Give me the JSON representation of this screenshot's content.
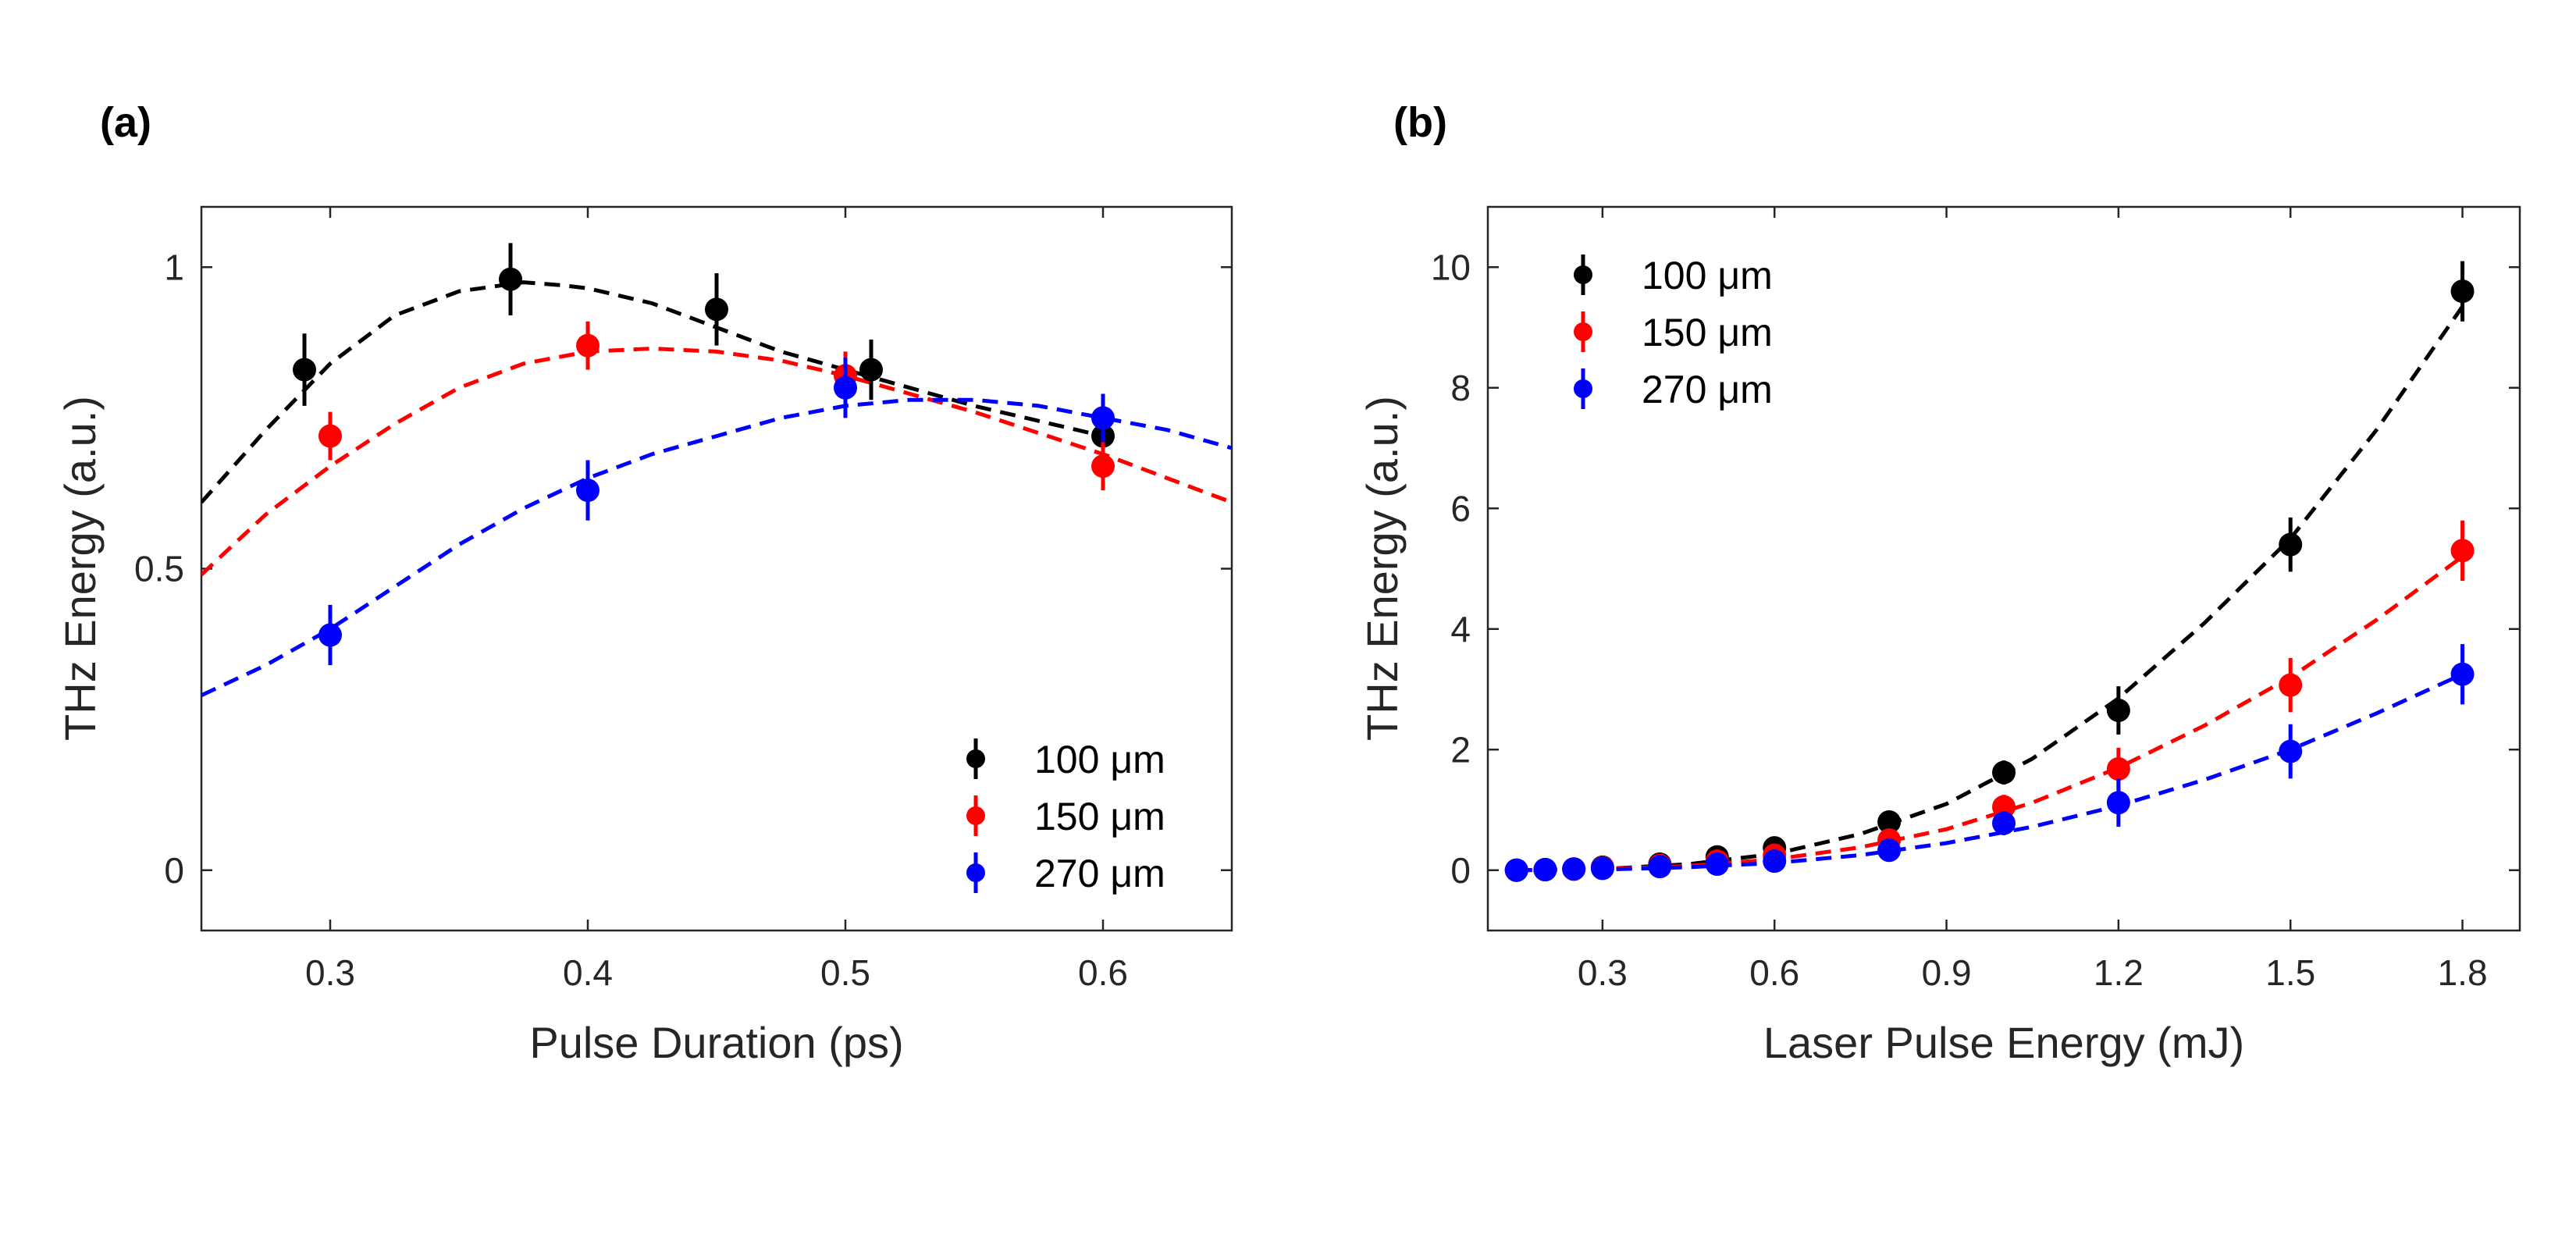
{
  "chart_data": [
    {
      "panel": "(a)",
      "type": "scatter",
      "xlabel": "Pulse Duration (ps)",
      "ylabel": "THz Energy (a.u.)",
      "xlim": [
        0.25,
        0.65
      ],
      "ylim": [
        -0.1,
        1.1
      ],
      "xticks": [
        0.3,
        0.4,
        0.5,
        0.6
      ],
      "xtick_labels": [
        "0.3",
        "0.4",
        "0.5",
        "0.6"
      ],
      "yticks": [
        0,
        0.5,
        1
      ],
      "ytick_labels": [
        "0",
        "0.5",
        "1"
      ],
      "legend_position": "bottom-right",
      "series": [
        {
          "name": "100 μm",
          "color": "#000000",
          "x": [
            0.29,
            0.37,
            0.45,
            0.51,
            0.6
          ],
          "y": [
            0.83,
            0.98,
            0.93,
            0.83,
            0.72
          ],
          "err": [
            0.06,
            0.06,
            0.06,
            0.05,
            0.04
          ],
          "fit_x": [
            0.25,
            0.275,
            0.3,
            0.325,
            0.35,
            0.375,
            0.39,
            0.4,
            0.425,
            0.45,
            0.475,
            0.5,
            0.525,
            0.55,
            0.575,
            0.6
          ],
          "fit_y": [
            0.61,
            0.73,
            0.84,
            0.92,
            0.96,
            0.975,
            0.97,
            0.965,
            0.94,
            0.9,
            0.86,
            0.83,
            0.8,
            0.77,
            0.745,
            0.72
          ]
        },
        {
          "name": "150 μm",
          "color": "#ff0000",
          "x": [
            0.3,
            0.4,
            0.5,
            0.6
          ],
          "y": [
            0.72,
            0.87,
            0.82,
            0.67
          ],
          "err": [
            0.04,
            0.04,
            0.04,
            0.04
          ],
          "fit_x": [
            0.25,
            0.275,
            0.3,
            0.325,
            0.35,
            0.375,
            0.4,
            0.425,
            0.45,
            0.475,
            0.5,
            0.525,
            0.55,
            0.575,
            0.6,
            0.625,
            0.65
          ],
          "fit_y": [
            0.49,
            0.59,
            0.67,
            0.74,
            0.8,
            0.84,
            0.86,
            0.865,
            0.86,
            0.845,
            0.82,
            0.79,
            0.76,
            0.725,
            0.69,
            0.65,
            0.61
          ]
        },
        {
          "name": "270 μm",
          "color": "#0000ff",
          "x": [
            0.3,
            0.4,
            0.5,
            0.6
          ],
          "y": [
            0.39,
            0.63,
            0.8,
            0.75
          ],
          "err": [
            0.05,
            0.05,
            0.05,
            0.04
          ],
          "fit_x": [
            0.25,
            0.275,
            0.3,
            0.325,
            0.35,
            0.375,
            0.4,
            0.425,
            0.45,
            0.475,
            0.5,
            0.525,
            0.55,
            0.575,
            0.6,
            0.625,
            0.65
          ],
          "fit_y": [
            0.29,
            0.34,
            0.4,
            0.47,
            0.54,
            0.6,
            0.65,
            0.69,
            0.72,
            0.75,
            0.77,
            0.78,
            0.78,
            0.77,
            0.75,
            0.73,
            0.7
          ]
        }
      ]
    },
    {
      "panel": "(b)",
      "type": "scatter",
      "xlabel": "Laser Pulse Energy (mJ)",
      "ylabel": "THz Energy (a.u.)",
      "xlim": [
        0.1,
        1.9
      ],
      "ylim": [
        -1,
        11
      ],
      "xticks": [
        0.3,
        0.6,
        0.9,
        1.2,
        1.5,
        1.8
      ],
      "xtick_labels": [
        "0.3",
        "0.6",
        "0.9",
        "1.2",
        "1.5",
        "1.8"
      ],
      "yticks": [
        0,
        2,
        4,
        6,
        8,
        10
      ],
      "ytick_labels": [
        "0",
        "2",
        "4",
        "6",
        "8",
        "10"
      ],
      "legend_position": "top-left",
      "series": [
        {
          "name": "100 μm",
          "color": "#000000",
          "x": [
            0.15,
            0.2,
            0.25,
            0.3,
            0.4,
            0.5,
            0.6,
            0.8,
            1.0,
            1.2,
            1.5,
            1.8
          ],
          "y": [
            0.0,
            0.01,
            0.02,
            0.05,
            0.1,
            0.22,
            0.37,
            0.8,
            1.62,
            2.65,
            5.4,
            9.6
          ],
          "err": [
            0.05,
            0.05,
            0.05,
            0.05,
            0.05,
            0.05,
            0.08,
            0.12,
            0.2,
            0.4,
            0.45,
            0.5
          ],
          "fit_x": [
            0.15,
            0.3,
            0.45,
            0.6,
            0.75,
            0.9,
            1.05,
            1.2,
            1.35,
            1.5,
            1.65,
            1.8
          ],
          "fit_y": [
            0.0,
            0.02,
            0.1,
            0.27,
            0.6,
            1.1,
            1.85,
            2.85,
            4.1,
            5.5,
            7.3,
            9.35
          ]
        },
        {
          "name": "150 μm",
          "color": "#ff0000",
          "x": [
            0.15,
            0.2,
            0.25,
            0.3,
            0.4,
            0.5,
            0.6,
            0.8,
            1.0,
            1.2,
            1.5,
            1.8
          ],
          "y": [
            0.0,
            0.01,
            0.02,
            0.04,
            0.08,
            0.15,
            0.25,
            0.5,
            1.05,
            1.68,
            3.07,
            5.3
          ],
          "err": [
            0.05,
            0.05,
            0.05,
            0.05,
            0.05,
            0.05,
            0.08,
            0.12,
            0.2,
            0.35,
            0.45,
            0.5
          ],
          "fit_x": [
            0.15,
            0.3,
            0.45,
            0.6,
            0.75,
            0.9,
            1.05,
            1.2,
            1.35,
            1.5,
            1.65,
            1.8
          ],
          "fit_y": [
            0.0,
            0.02,
            0.07,
            0.18,
            0.38,
            0.68,
            1.12,
            1.7,
            2.4,
            3.2,
            4.15,
            5.2
          ]
        },
        {
          "name": "270 μm",
          "color": "#0000ff",
          "x": [
            0.15,
            0.2,
            0.25,
            0.3,
            0.4,
            0.5,
            0.6,
            0.8,
            1.0,
            1.2,
            1.5,
            1.8
          ],
          "y": [
            0.0,
            0.01,
            0.02,
            0.03,
            0.06,
            0.1,
            0.15,
            0.33,
            0.78,
            1.12,
            1.97,
            3.25
          ],
          "err": [
            0.05,
            0.05,
            0.05,
            0.05,
            0.05,
            0.05,
            0.08,
            0.12,
            0.2,
            0.4,
            0.45,
            0.5
          ],
          "fit_x": [
            0.15,
            0.3,
            0.45,
            0.6,
            0.75,
            0.9,
            1.05,
            1.2,
            1.35,
            1.5,
            1.65,
            1.8
          ],
          "fit_y": [
            0.0,
            0.01,
            0.05,
            0.12,
            0.25,
            0.45,
            0.72,
            1.07,
            1.5,
            2.0,
            2.6,
            3.25
          ]
        }
      ]
    }
  ]
}
